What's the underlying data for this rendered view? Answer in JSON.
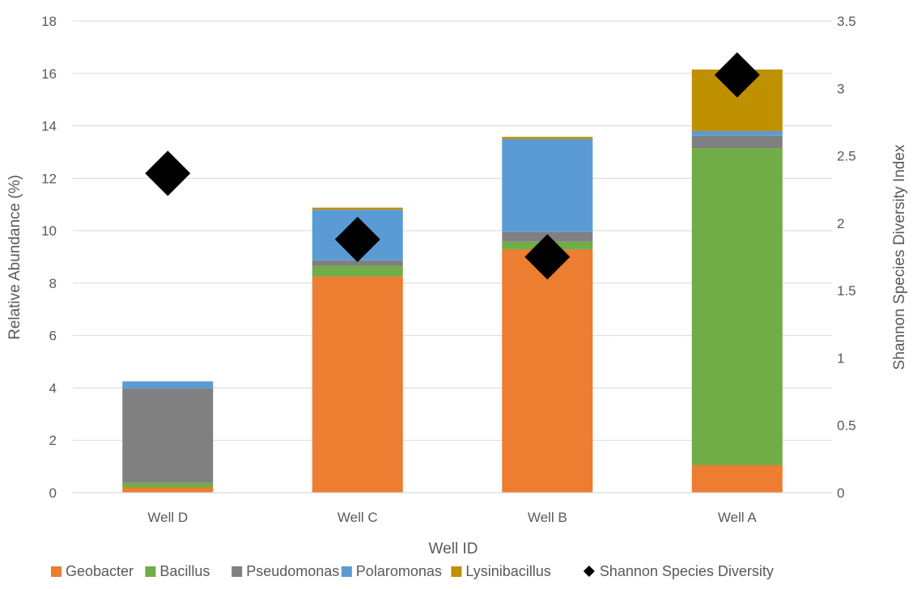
{
  "chart_data": {
    "type": "bar",
    "stacked": true,
    "categories": [
      "Well D",
      "Well C",
      "Well B",
      "Well A"
    ],
    "series": [
      {
        "name": "Geobacter",
        "color": "#ED7D31",
        "values": [
          0.2,
          8.25,
          9.28,
          1.05
        ]
      },
      {
        "name": "Bacillus",
        "color": "#70AD47",
        "values": [
          0.18,
          0.4,
          0.3,
          12.1
        ]
      },
      {
        "name": "Pseudomonas",
        "color": "#808080",
        "values": [
          3.6,
          0.22,
          0.37,
          0.47
        ]
      },
      {
        "name": "Polaromonas",
        "color": "#5B9BD5",
        "values": [
          0.27,
          1.93,
          3.55,
          0.18
        ]
      },
      {
        "name": "Lysinibacillus",
        "color": "#BF9000",
        "values": [
          0.0,
          0.08,
          0.08,
          2.35
        ]
      }
    ],
    "secondary_series": {
      "name": "Shannon Species Diversity",
      "type": "scatter",
      "marker": "diamond",
      "color": "#000000",
      "values": [
        2.37,
        1.88,
        1.75,
        3.1
      ]
    },
    "xlabel": "Well ID",
    "ylabel": "Relative Abundance (%)",
    "y2label": "Shannon Species Diversity Index",
    "ylim": [
      0,
      18
    ],
    "y2lim": [
      0,
      3.5
    ],
    "yticks": [
      "0",
      "2",
      "4",
      "6",
      "8",
      "10",
      "12",
      "14",
      "16",
      "18"
    ],
    "y2ticks": [
      "0",
      "0.5",
      "1",
      "1.5",
      "2",
      "2.5",
      "3",
      "3.5"
    ],
    "grid": true,
    "legend_position": "bottom"
  }
}
